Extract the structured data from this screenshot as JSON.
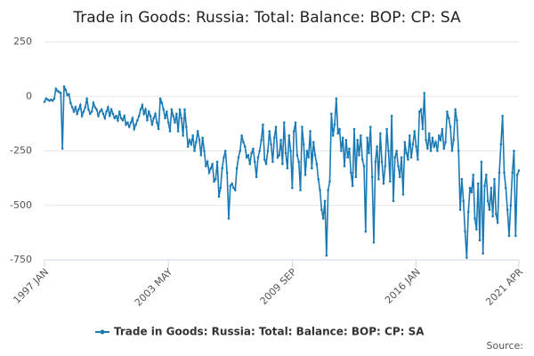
{
  "chart_data": {
    "type": "line",
    "title": "Trade in Goods: Russia: Total: Balance: BOP: CP: SA",
    "source": "Source:",
    "categories": [
      "1997 JAN",
      null,
      null,
      null,
      null,
      null,
      null,
      null,
      null,
      null,
      null,
      null,
      null,
      null,
      null,
      null,
      null,
      null,
      null,
      null,
      null,
      null,
      null,
      null,
      null,
      null,
      null,
      null,
      null,
      null,
      null,
      null,
      null,
      null,
      null,
      null,
      null,
      null,
      null,
      null,
      null,
      null,
      null,
      null,
      null,
      null,
      null,
      null,
      null,
      null,
      null,
      null,
      null,
      null,
      null,
      null,
      null,
      null,
      null,
      null,
      null,
      null,
      null,
      null,
      null,
      null,
      null,
      null,
      null,
      null,
      null,
      null,
      null,
      null,
      null,
      null,
      "2003 MAY",
      null,
      null,
      null,
      null,
      null,
      null,
      null,
      null,
      null,
      null,
      null,
      null,
      null,
      null,
      null,
      null,
      null,
      null,
      null,
      null,
      null,
      null,
      null,
      null,
      null,
      null,
      null,
      null,
      null,
      null,
      null,
      null,
      null,
      null,
      null,
      null,
      null,
      null,
      null,
      null,
      null,
      null,
      null,
      null,
      null,
      null,
      null,
      null,
      null,
      null,
      null,
      null,
      null,
      null,
      null,
      null,
      null,
      null,
      null,
      null,
      null,
      null,
      null,
      null,
      null,
      null,
      null,
      null,
      null,
      null,
      null,
      null,
      null,
      null,
      null,
      "2009 SEP",
      null,
      null,
      null,
      null,
      null,
      null,
      null,
      null,
      null,
      null,
      null,
      null,
      null,
      null,
      null,
      null,
      null,
      null,
      null,
      null,
      null,
      null,
      null,
      null,
      null,
      null,
      null,
      null,
      null,
      null,
      null,
      null,
      null,
      null,
      null,
      null,
      null,
      null,
      null,
      null,
      null,
      null,
      null,
      null,
      null,
      null,
      null,
      null,
      null,
      null,
      null,
      null,
      null,
      null,
      null,
      null,
      null,
      null,
      null,
      null,
      null,
      null,
      null,
      null,
      null,
      null,
      null,
      null,
      null,
      null,
      null,
      null,
      null,
      null,
      null,
      "2016 JAN",
      null,
      null,
      null,
      null,
      null,
      null,
      null,
      null,
      null,
      null,
      null,
      null,
      null,
      null,
      null,
      null,
      null,
      null,
      null,
      null,
      null,
      null,
      null,
      null,
      null,
      null,
      null,
      null,
      null,
      null,
      null,
      null,
      null,
      null,
      null,
      null,
      null,
      null,
      null,
      null,
      null,
      null,
      null,
      null,
      null,
      null,
      null,
      null,
      null,
      null,
      null,
      null,
      null,
      null,
      null,
      null,
      null,
      null,
      null,
      null,
      null,
      null,
      "2021 APR"
    ],
    "series": [
      {
        "name": "Trade in Goods: Russia: Total: Balance: BOP: CP: SA",
        "color": "#1a7ab5",
        "values": [
          -25,
          -10,
          -15,
          -20,
          -15,
          -20,
          -10,
          35,
          25,
          20,
          15,
          -240,
          45,
          30,
          5,
          10,
          -30,
          -50,
          -70,
          -50,
          -80,
          -60,
          -40,
          -90,
          -70,
          -50,
          -10,
          -60,
          -80,
          -70,
          -30,
          -50,
          -60,
          -90,
          -70,
          -60,
          -80,
          -100,
          -70,
          -50,
          -90,
          -60,
          -80,
          -100,
          -90,
          -110,
          -70,
          -100,
          -110,
          -90,
          -130,
          -120,
          -140,
          -120,
          -100,
          -150,
          -130,
          -110,
          -90,
          -60,
          -40,
          -80,
          -60,
          -110,
          -70,
          -90,
          -130,
          -100,
          -80,
          -120,
          -150,
          -10,
          -30,
          -60,
          -100,
          -70,
          -120,
          -160,
          -60,
          -90,
          -120,
          -80,
          -160,
          -60,
          -100,
          -180,
          -60,
          -140,
          -230,
          -200,
          -220,
          -180,
          -250,
          -210,
          -160,
          -200,
          -270,
          -190,
          -250,
          -320,
          -300,
          -350,
          -330,
          -310,
          -390,
          -380,
          -300,
          -460,
          -420,
          -330,
          -280,
          -250,
          -350,
          -560,
          -410,
          -400,
          -420,
          -430,
          -330,
          -280,
          -250,
          -180,
          -210,
          -230,
          -280,
          -270,
          -310,
          -260,
          -240,
          -300,
          -370,
          -280,
          -250,
          -200,
          -130,
          -290,
          -310,
          -250,
          -160,
          -220,
          -300,
          -190,
          -140,
          -280,
          -270,
          -200,
          -310,
          -120,
          -260,
          -330,
          -180,
          -250,
          -420,
          -160,
          -120,
          -270,
          -300,
          -430,
          -140,
          -220,
          -360,
          -250,
          -280,
          -160,
          -330,
          -210,
          -270,
          -310,
          -380,
          -430,
          -520,
          -560,
          -480,
          -730,
          -430,
          -390,
          -80,
          -180,
          -130,
          -10,
          -170,
          -150,
          -250,
          -190,
          -320,
          -200,
          -280,
          -240,
          -350,
          -410,
          -150,
          -370,
          -200,
          -270,
          -180,
          -290,
          -320,
          -620,
          -190,
          -260,
          -140,
          -370,
          -670,
          -300,
          -230,
          -380,
          -170,
          -300,
          -400,
          -320,
          -150,
          -250,
          -390,
          -90,
          -480,
          -280,
          -250,
          -320,
          -370,
          -280,
          -450,
          -210,
          -260,
          -290,
          -180,
          -280,
          -220,
          -160,
          -230,
          -290,
          -70,
          -60,
          -150,
          15,
          -200,
          -240,
          -170,
          -250,
          -190,
          -230,
          -210,
          -250,
          -180,
          -200,
          -150,
          -240,
          -210,
          -70,
          -100,
          -140,
          -250,
          -200,
          -60,
          -110,
          -250,
          -520,
          -380,
          -480,
          -620,
          -740,
          -530,
          -420,
          -440,
          -360,
          -560,
          -610,
          -400,
          -660,
          -300,
          -720,
          -410,
          -360,
          -480,
          -520,
          -420,
          -550,
          -380,
          -540,
          -580,
          -350,
          -220,
          -90,
          -350,
          -420,
          -520,
          -640,
          -500,
          -350,
          -250,
          -640,
          -360,
          -340
        ]
      }
    ],
    "ylim": [
      -750,
      250
    ],
    "yticks": [
      250,
      0,
      -250,
      -500,
      -750
    ],
    "grid": true
  }
}
